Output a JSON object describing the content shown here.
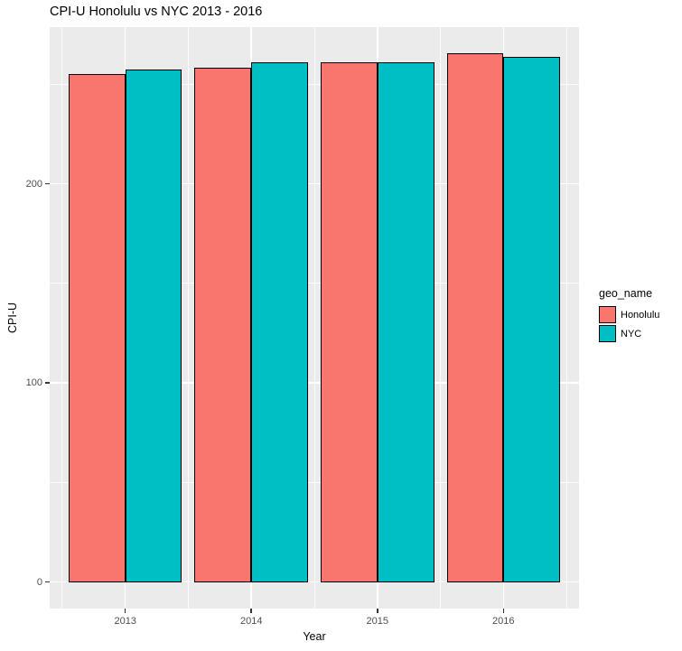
{
  "title": "CPI-U Honolulu vs NYC 2013 - 2016",
  "chart_data": {
    "type": "bar",
    "title": "CPI-U Honolulu vs NYC 2013 - 2016",
    "xlabel": "Year",
    "ylabel": "CPI-U",
    "categories": [
      "2013",
      "2014",
      "2015",
      "2016"
    ],
    "series": [
      {
        "name": "Honolulu",
        "color": "#F8766D",
        "values": [
          255.0,
          258.5,
          261.0,
          265.5
        ]
      },
      {
        "name": "NYC",
        "color": "#00BFC4",
        "values": [
          257.5,
          261.0,
          261.0,
          264.0
        ]
      }
    ],
    "legend_title": "geo_name",
    "legend_position": "right",
    "y_ticks": [
      0,
      100,
      200
    ],
    "y_minor_ticks": [
      50,
      150,
      250
    ],
    "ylim": [
      0,
      266
    ],
    "y_expansion": 0.05,
    "grid": true,
    "style": {
      "panel_bg": "#EBEBEB",
      "grid_color": "#FFFFFF",
      "bar_border": "#000000",
      "tick_mark_color": "#333333",
      "tick_label_color": "#4D4D4D",
      "text_color": "#000000",
      "page_bg": "#FFFFFF"
    }
  }
}
